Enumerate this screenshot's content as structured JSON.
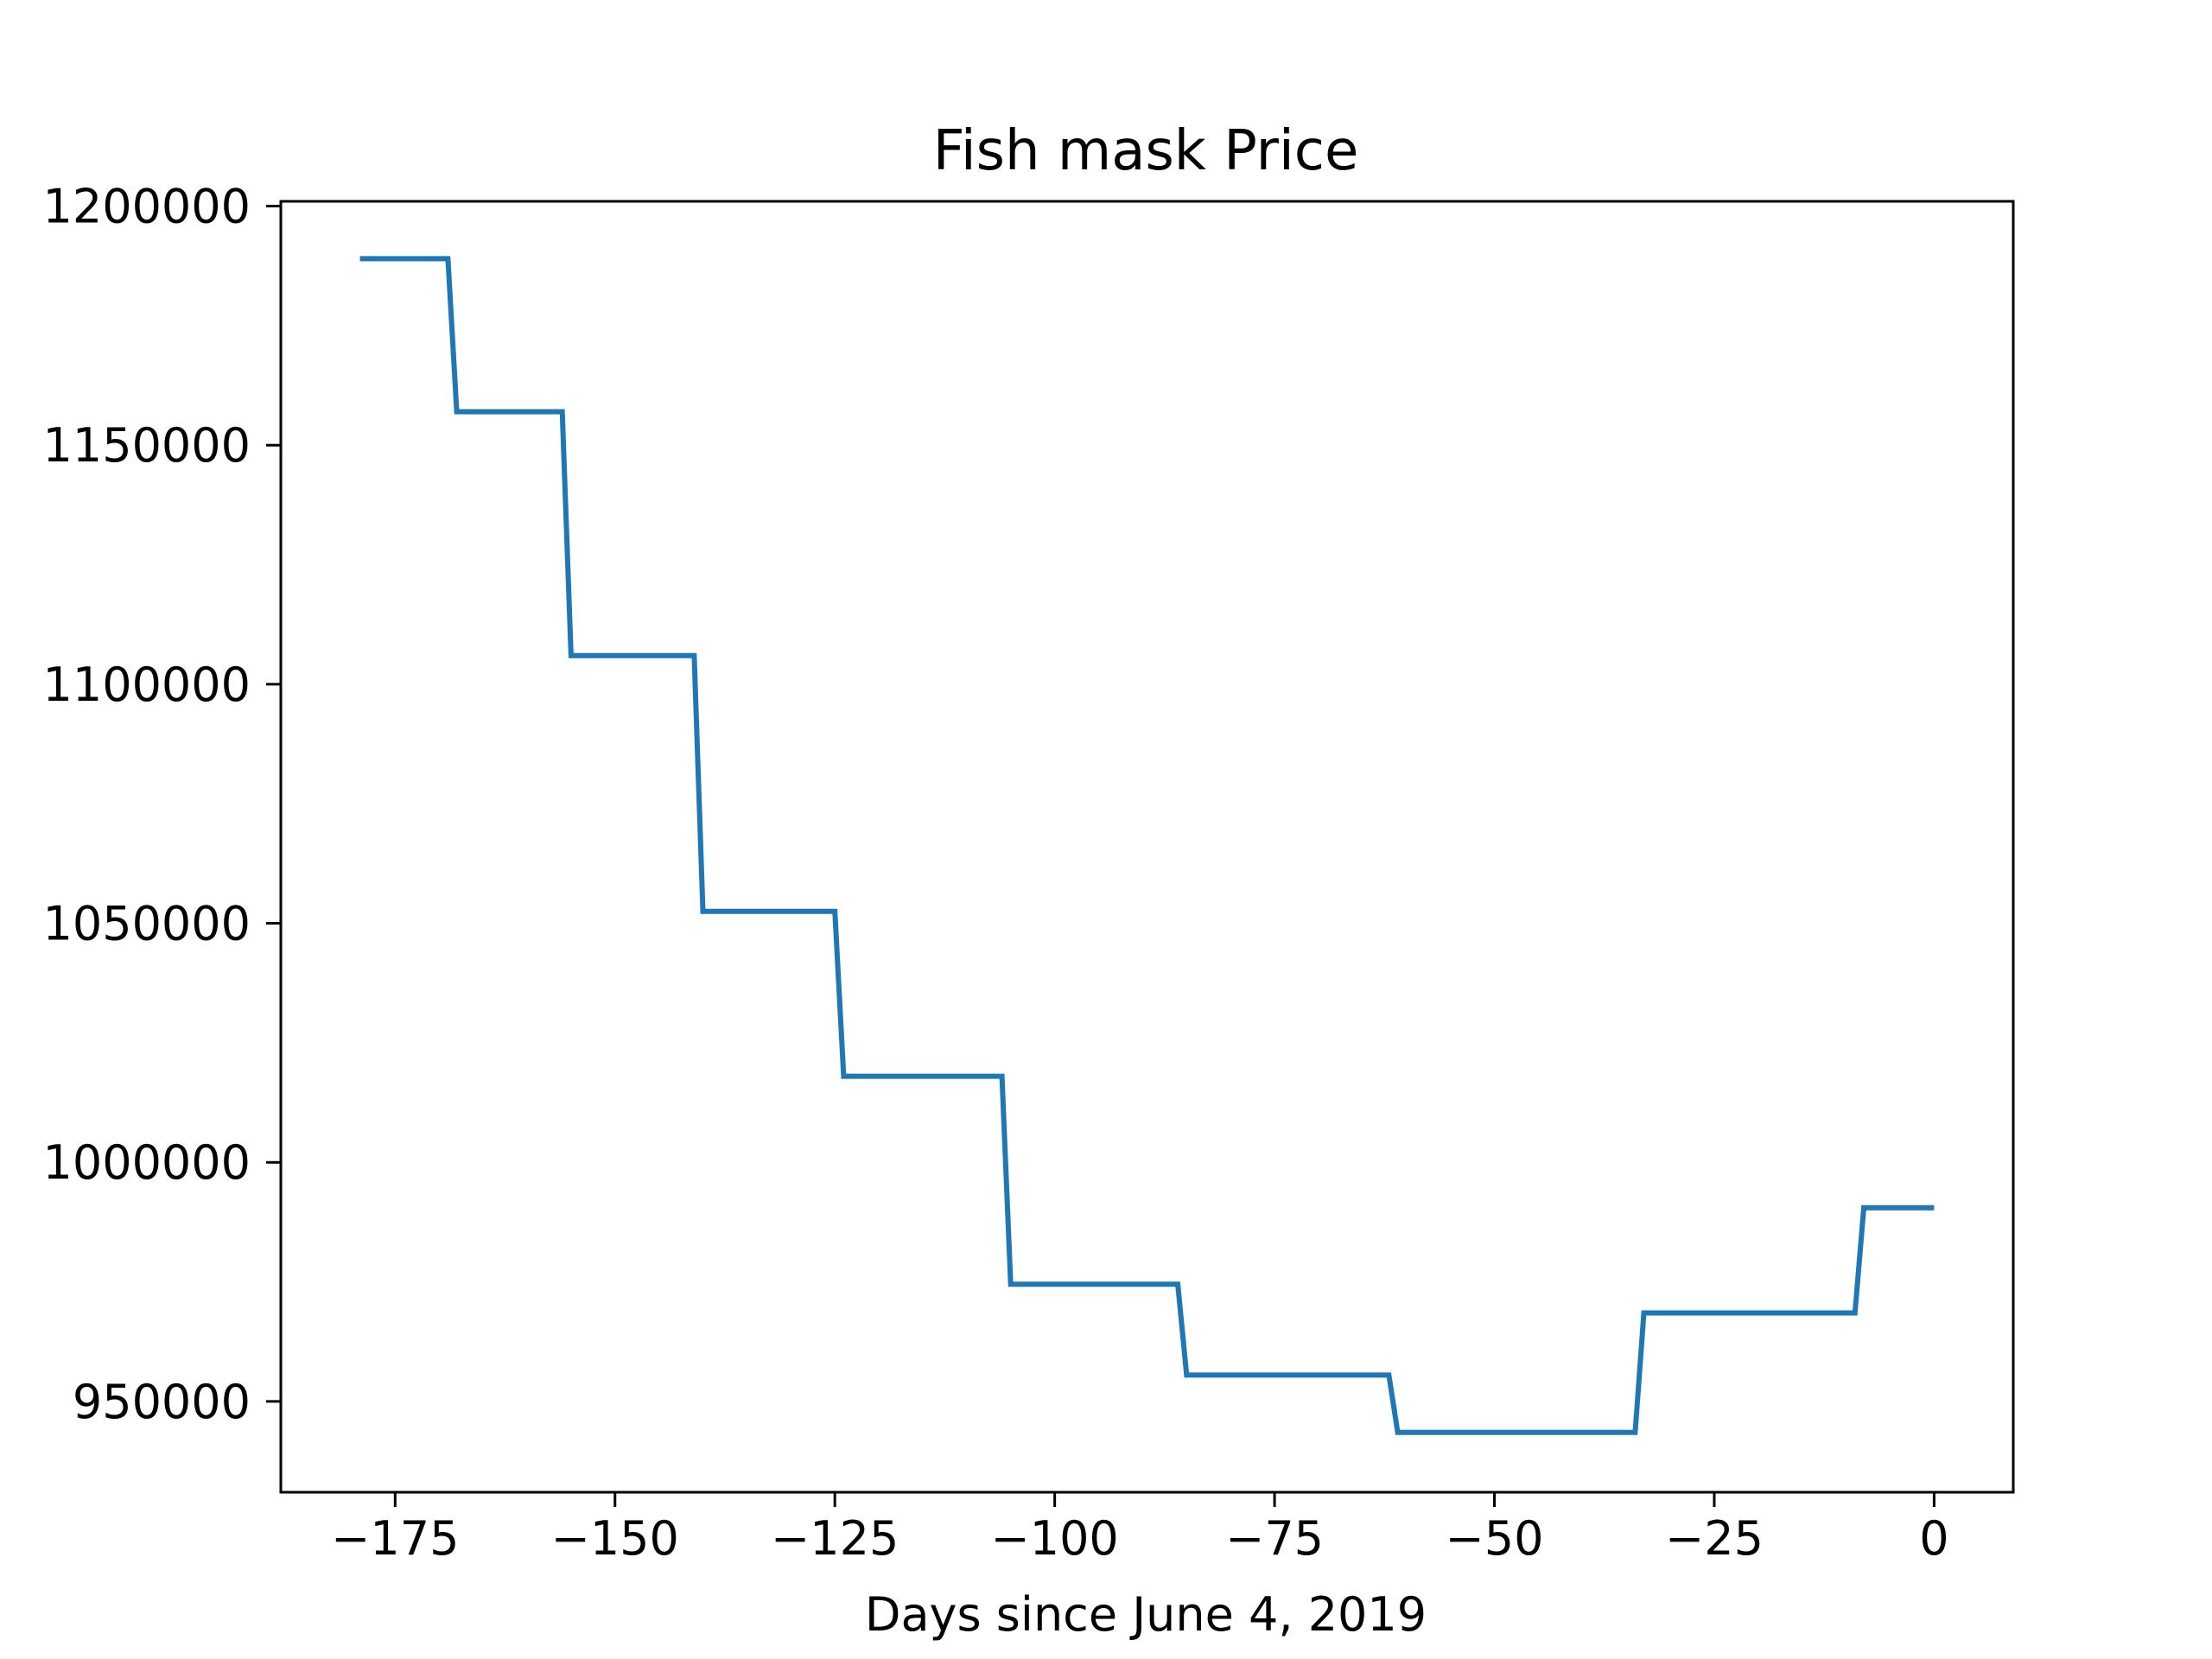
{
  "chart_data": {
    "type": "line",
    "title": "Fish mask Price",
    "xlabel": "Days since June 4, 2019",
    "ylabel": "",
    "xlim": [
      -188,
      9
    ],
    "ylim": [
      931000,
      1201000
    ],
    "x_ticks": [
      -175,
      -150,
      -125,
      -100,
      -75,
      -50,
      -25,
      0
    ],
    "x_tick_labels": [
      "−175",
      "−150",
      "−125",
      "−100",
      "−75",
      "−50",
      "−25",
      "0"
    ],
    "y_ticks": [
      950000,
      1000000,
      1050000,
      1100000,
      1150000,
      1200000
    ],
    "y_tick_labels": [
      "950000",
      "1000000",
      "1050000",
      "1100000",
      "1150000",
      "1200000"
    ],
    "grid": false,
    "series": [
      {
        "color": "#1f77b4",
        "x": [
          -179,
          -169,
          -168,
          -156,
          -155,
          -141,
          -140,
          -125,
          -124,
          -106,
          -105,
          -86,
          -85,
          -62,
          -61,
          -34,
          -33,
          -9,
          -8,
          0
        ],
        "y": [
          1189000,
          1189000,
          1157000,
          1157000,
          1106000,
          1106000,
          1052500,
          1052500,
          1018000,
          1018000,
          974500,
          974500,
          955500,
          955500,
          943500,
          943500,
          968500,
          968500,
          990500,
          990500
        ]
      }
    ]
  }
}
